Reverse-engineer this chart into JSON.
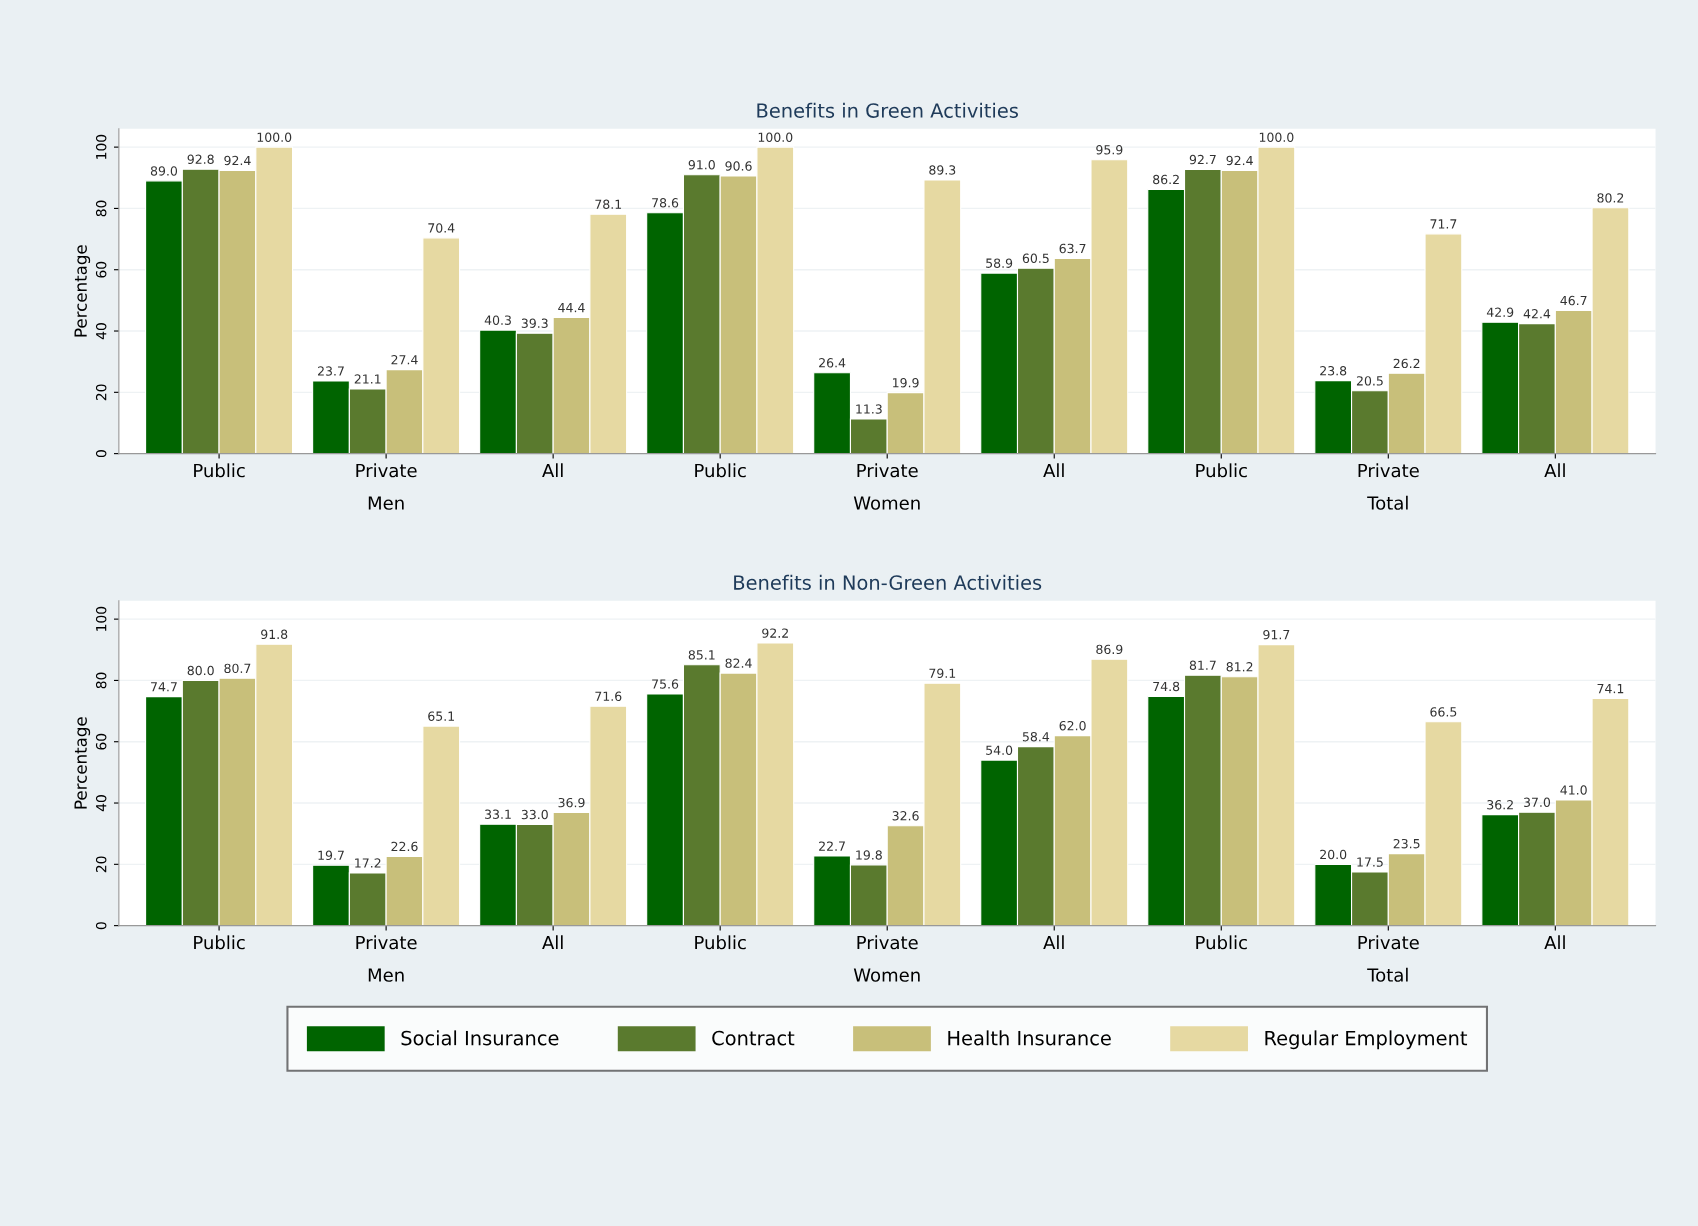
{
  "chart_data": [
    {
      "type": "bar",
      "title": "Benefits in Green Activities",
      "ylabel": "Percentage",
      "categories": [
        "Public",
        "Private",
        "All",
        "Public",
        "Private",
        "All",
        "Public",
        "Private",
        "All"
      ],
      "annotations": [
        "Men",
        "Women",
        "Total"
      ],
      "series": [
        {
          "color": "#006400",
          "values": [
            89.0,
            23.7,
            40.3,
            78.6,
            26.4,
            58.9,
            86.2,
            23.8,
            42.9
          ],
          "value_labels": [
            "89.0",
            "23.7",
            "40.3",
            "78.6",
            "26.4",
            "58.9",
            "86.2",
            "23.8",
            "42.9"
          ]
        },
        {
          "color": "#5a7a2e",
          "values": [
            92.8,
            21.1,
            39.3,
            91.0,
            11.3,
            60.5,
            92.7,
            20.5,
            42.4
          ],
          "value_labels": [
            "92.8",
            "21.1",
            "39.3",
            "91.0",
            "11.3",
            "60.5",
            "92.7",
            "20.5",
            "42.4"
          ]
        },
        {
          "color": "#c8bf7a",
          "values": [
            92.4,
            27.4,
            44.4,
            90.6,
            19.9,
            63.7,
            92.4,
            26.2,
            46.7
          ],
          "value_labels": [
            "92.4",
            "27.4",
            "44.4",
            "90.6",
            "19.9",
            "63.7",
            "92.4",
            "26.2",
            "46.7"
          ]
        },
        {
          "color": "#e6d9a2",
          "values": [
            100.0,
            70.4,
            78.1,
            100.0,
            89.3,
            95.9,
            100.0,
            71.7,
            80.2
          ],
          "value_labels": [
            "100.0",
            "70.4",
            "78.1",
            "100.0",
            "89.3",
            "95.9",
            "100.0",
            "71.7",
            "80.2"
          ]
        }
      ],
      "ylim": [
        0,
        106
      ],
      "yticks": [
        0,
        20,
        40,
        60,
        80,
        100
      ],
      "grid": "y"
    },
    {
      "type": "bar",
      "title": "Benefits in Non-Green Activities",
      "ylabel": "Percentage",
      "categories": [
        "Public",
        "Private",
        "All",
        "Public",
        "Private",
        "All",
        "Public",
        "Private",
        "All"
      ],
      "annotations": [
        "Men",
        "Women",
        "Total"
      ],
      "series": [
        {
          "name": "Social Insurance",
          "color": "#006400",
          "values": [
            74.7,
            19.7,
            33.1,
            75.6,
            22.7,
            54.0,
            74.8,
            20.0,
            36.2
          ],
          "value_labels": [
            "74.7",
            "19.7",
            "33.1",
            "75.6",
            "22.7",
            "54.0",
            "74.8",
            "20.0",
            "36.2"
          ]
        },
        {
          "name": "Contract",
          "color": "#5a7a2e",
          "values": [
            80.0,
            17.2,
            33.0,
            85.1,
            19.8,
            58.4,
            81.7,
            17.5,
            37.0
          ],
          "value_labels": [
            "80.0",
            "17.2",
            "33.0",
            "85.1",
            "19.8",
            "58.4",
            "81.7",
            "17.5",
            "37.0"
          ]
        },
        {
          "name": "Health Insurance",
          "color": "#c8bf7a",
          "values": [
            80.7,
            22.6,
            36.9,
            82.4,
            32.6,
            62.0,
            81.2,
            23.5,
            41.0
          ],
          "value_labels": [
            "80.7",
            "22.6",
            "36.9",
            "82.4",
            "32.6",
            "62.0",
            "81.2",
            "23.5",
            "41.0"
          ]
        },
        {
          "name": "Regular Employment",
          "color": "#e6d9a2",
          "values": [
            91.8,
            65.1,
            71.6,
            92.2,
            79.1,
            86.9,
            91.7,
            66.5,
            74.1
          ],
          "value_labels": [
            "91.8",
            "65.1",
            "71.6",
            "92.2",
            "79.1",
            "86.9",
            "91.7",
            "66.5",
            "74.1"
          ]
        }
      ],
      "ylim": [
        0,
        106
      ],
      "yticks": [
        0,
        20,
        40,
        60,
        80,
        100
      ],
      "grid": "y",
      "legend": "bottom"
    }
  ]
}
